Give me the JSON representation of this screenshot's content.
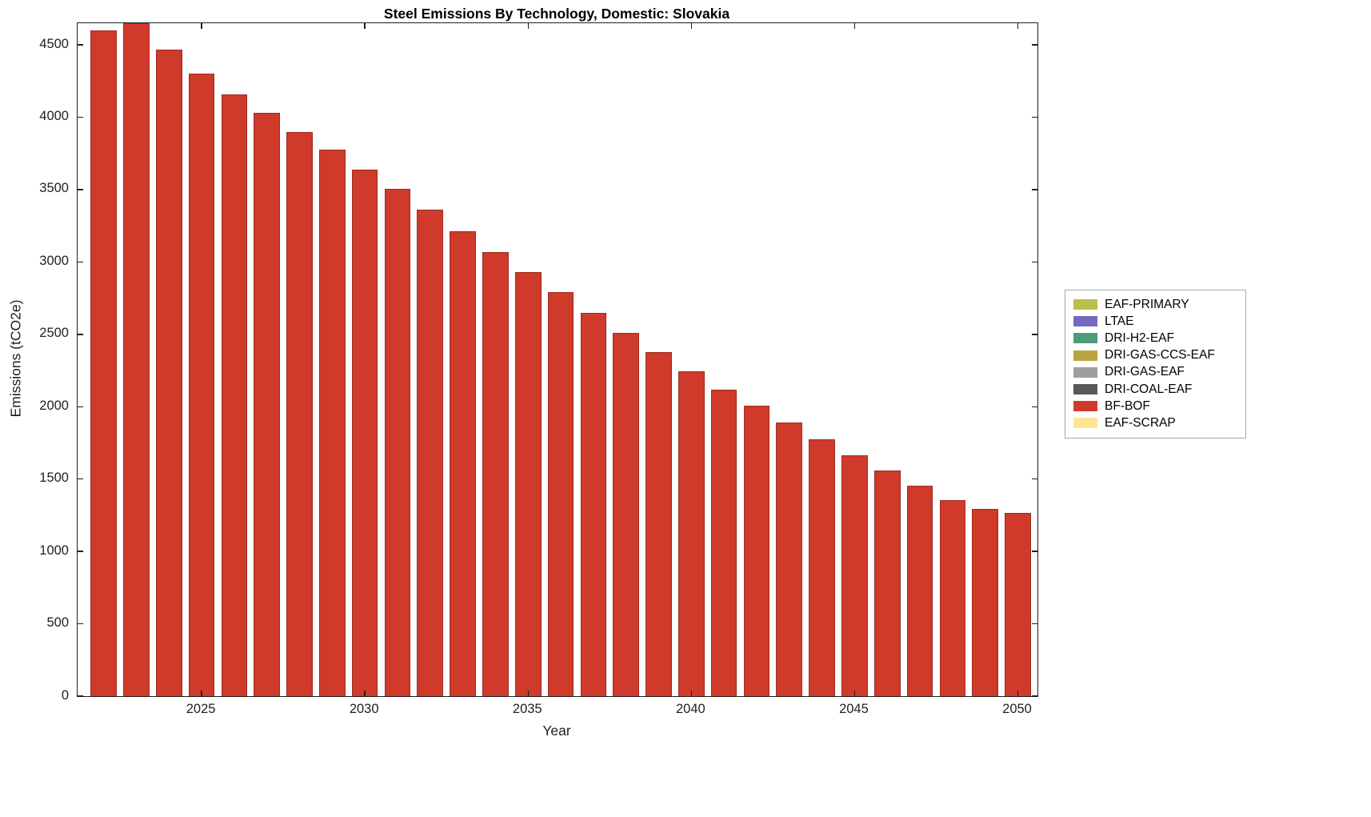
{
  "chart_data": {
    "type": "bar",
    "title": "Steel Emissions By Technology, Domestic: Slovakia",
    "xlabel": "Year",
    "ylabel": "Emissions (tCO2e)",
    "categories": [
      2022,
      2023,
      2024,
      2025,
      2026,
      2027,
      2028,
      2029,
      2030,
      2031,
      2032,
      2033,
      2034,
      2035,
      2036,
      2037,
      2038,
      2039,
      2040,
      2041,
      2042,
      2043,
      2044,
      2045,
      2046,
      2047,
      2048,
      2049,
      2050
    ],
    "series": [
      {
        "name": "BF-BOF",
        "color": "#cf3a2b",
        "values": [
          4600,
          4650,
          4465,
          4300,
          4160,
          4030,
          3900,
          3775,
          3640,
          3505,
          3360,
          3215,
          3070,
          2930,
          2790,
          2650,
          2510,
          2375,
          2245,
          2120,
          2005,
          1890,
          1775,
          1665,
          1560,
          1455,
          1355,
          1295,
          1265
        ]
      }
    ],
    "x_ticks": [
      2025,
      2030,
      2035,
      2040,
      2045,
      2050
    ],
    "y_ticks": [
      0,
      500,
      1000,
      1500,
      2000,
      2500,
      3000,
      3500,
      4000,
      4500
    ],
    "ylim": [
      0,
      4650
    ],
    "xlim": [
      2021.2,
      2050.6
    ],
    "bar_rel_width": 0.8,
    "grid": false,
    "legend_position": "right-outside",
    "legend": [
      {
        "label": "EAF-PRIMARY",
        "color": "#b9be4e"
      },
      {
        "label": "LTAE",
        "color": "#7668c3"
      },
      {
        "label": "DRI-H2-EAF",
        "color": "#4e9b7c"
      },
      {
        "label": "DRI-GAS-CCS-EAF",
        "color": "#b8a43e"
      },
      {
        "label": "DRI-GAS-EAF",
        "color": "#9e9e9e"
      },
      {
        "label": "DRI-COAL-EAF",
        "color": "#595959"
      },
      {
        "label": "BF-BOF",
        "color": "#cf3a2b"
      },
      {
        "label": "EAF-SCRAP",
        "color": "#ffe593"
      }
    ]
  }
}
